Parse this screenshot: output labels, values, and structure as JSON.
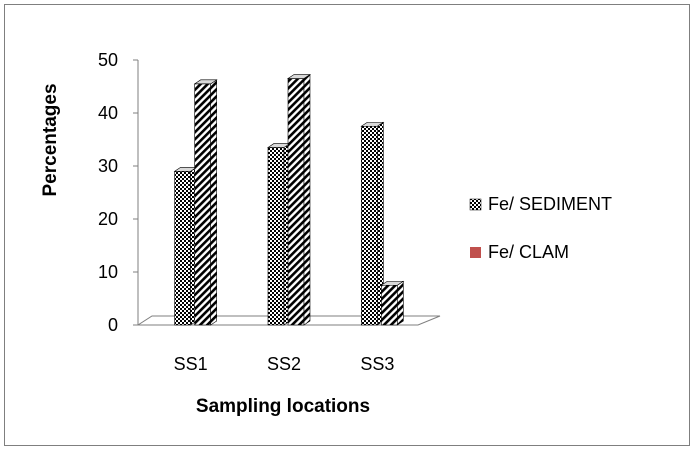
{
  "chart_data": {
    "type": "bar",
    "categories": [
      "SS1",
      "SS2",
      "SS3"
    ],
    "series": [
      {
        "name": "Fe/ SEDIMENT",
        "values": [
          29,
          33.5,
          37.5
        ]
      },
      {
        "name": "Fe/  CLAM",
        "values": [
          45.5,
          46.5,
          7.5
        ]
      }
    ],
    "xlabel": "Sampling locations",
    "ylabel": "Percentages",
    "ylim": [
      0,
      50
    ],
    "yticks": [
      0,
      10,
      20,
      30,
      40,
      50
    ],
    "grid": false,
    "three_d": true,
    "legend_position": "right",
    "legend_swatch_colors": [
      "#555555",
      "#c0504d"
    ]
  }
}
